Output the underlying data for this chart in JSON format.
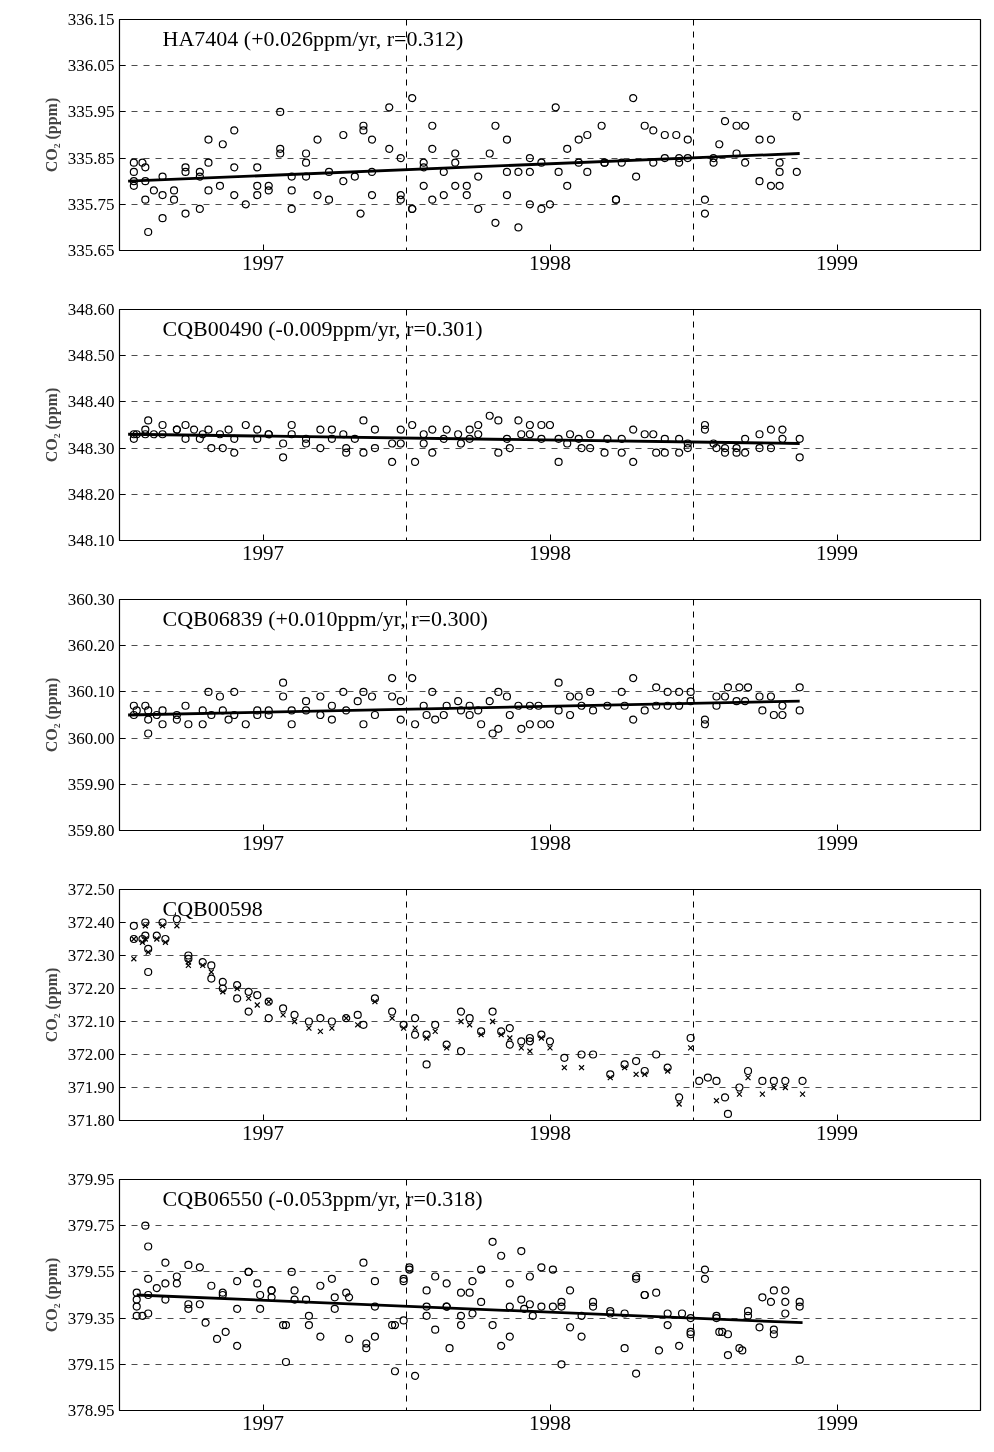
{
  "chart_data": [
    {
      "type": "scatter",
      "title": "HA7404  (+0.026ppm/yr, r=0.312)",
      "ylabel": "CO₂ (ppm)",
      "xlim": [
        1997,
        2000
      ],
      "xticks": [
        {
          "value": 1997.5,
          "label": "1997"
        },
        {
          "value": 1998.5,
          "label": "1998"
        },
        {
          "value": 1999.5,
          "label": "1999"
        }
      ],
      "ylim": [
        335.65,
        336.15
      ],
      "yticks": [
        335.65,
        335.75,
        335.85,
        335.95,
        336.05,
        336.15
      ],
      "grid": "y",
      "marker": "circle",
      "ref_lines": [
        {
          "axis": "x",
          "value": 1998,
          "color": "#000000",
          "line_style": "dashed"
        },
        {
          "axis": "x",
          "value": 1999,
          "color": "#000000",
          "line_style": "dashed"
        }
      ],
      "series": [
        {
          "color": "#000000",
          "x": [
            1997.05,
            1997.05,
            1997.05,
            1997.05,
            1997.08,
            1997.09,
            1997.09,
            1997.09,
            1997.1,
            1997.12,
            1997.15,
            1997.15,
            1997.15,
            1997.19,
            1997.19,
            1997.23,
            1997.23,
            1997.23,
            1997.28,
            1997.28,
            1997.28,
            1997.31,
            1997.31,
            1997.31,
            1997.35,
            1997.36,
            1997.4,
            1997.4,
            1997.4,
            1997.44,
            1997.48,
            1997.48,
            1997.48,
            1997.52,
            1997.52,
            1997.56,
            1997.56,
            1997.56,
            1997.6,
            1997.6,
            1997.6,
            1997.65,
            1997.65,
            1997.65,
            1997.69,
            1997.69,
            1997.73,
            1997.73,
            1997.78,
            1997.78,
            1997.82,
            1997.84,
            1997.85,
            1997.85,
            1997.88,
            1997.88,
            1997.88,
            1997.94,
            1997.94,
            1997.98,
            1997.98,
            1997.98,
            1998.02,
            1998.02,
            1998.02,
            1998.06,
            1998.06,
            1998.06,
            1998.09,
            1998.09,
            1998.09,
            1998.13,
            1998.13,
            1998.17,
            1998.17,
            1998.17,
            1998.21,
            1998.21,
            1998.25,
            1998.25,
            1998.29,
            1998.31,
            1998.31,
            1998.35,
            1998.35,
            1998.35,
            1998.39,
            1998.39,
            1998.43,
            1998.43,
            1998.43,
            1998.47,
            1998.47,
            1998.5,
            1998.52,
            1998.53,
            1998.56,
            1998.56,
            1998.6,
            1998.6,
            1998.63,
            1998.63,
            1998.68,
            1998.69,
            1998.69,
            1998.73,
            1998.73,
            1998.75,
            1998.79,
            1998.8,
            1998.83,
            1998.86,
            1998.86,
            1998.9,
            1998.9,
            1998.94,
            1998.95,
            1998.95,
            1998.98,
            1998.98,
            1999.04,
            1999.04,
            1999.07,
            1999.07,
            1999.09,
            1999.11,
            1999.15,
            1999.15,
            1999.18,
            1999.18,
            1999.23,
            1999.23,
            1999.27,
            1999.27,
            1999.3,
            1999.3,
            1999.3,
            1999.36,
            1999.36
          ],
          "values": [
            335.84,
            335.8,
            335.82,
            335.79,
            335.84,
            335.8,
            335.83,
            335.76,
            335.69,
            335.78,
            335.72,
            335.81,
            335.77,
            335.76,
            335.78,
            335.83,
            335.82,
            335.73,
            335.82,
            335.81,
            335.74,
            335.84,
            335.78,
            335.89,
            335.79,
            335.88,
            335.77,
            335.91,
            335.83,
            335.75,
            335.77,
            335.79,
            335.83,
            335.79,
            335.78,
            335.95,
            335.87,
            335.86,
            335.81,
            335.74,
            335.78,
            335.81,
            335.86,
            335.84,
            335.89,
            335.77,
            335.82,
            335.76,
            335.9,
            335.8,
            335.81,
            335.73,
            335.91,
            335.92,
            335.89,
            335.82,
            335.77,
            335.96,
            335.87,
            335.85,
            335.77,
            335.76,
            335.74,
            335.74,
            335.98,
            335.84,
            335.83,
            335.79,
            335.87,
            335.92,
            335.76,
            335.77,
            335.82,
            335.86,
            335.84,
            335.79,
            335.79,
            335.77,
            335.74,
            335.81,
            335.86,
            335.92,
            335.71,
            335.89,
            335.77,
            335.82,
            335.7,
            335.82,
            335.75,
            335.82,
            335.85,
            335.74,
            335.84,
            335.75,
            335.96,
            335.82,
            335.87,
            335.79,
            335.89,
            335.84,
            335.9,
            335.82,
            335.92,
            335.84,
            335.84,
            335.76,
            335.76,
            335.84,
            335.98,
            335.81,
            335.92,
            335.91,
            335.84,
            335.9,
            335.85,
            335.9,
            335.85,
            335.84,
            335.89,
            335.85,
            335.76,
            335.73,
            335.84,
            335.85,
            335.88,
            335.93,
            335.92,
            335.86,
            335.92,
            335.84,
            335.89,
            335.8,
            335.89,
            335.79,
            335.84,
            335.82,
            335.79,
            335.94,
            335.82
          ]
        },
        {
          "type": "line",
          "color": "#000000",
          "x": [
            1997.03,
            1999.37
          ],
          "values": [
            335.8,
            335.86
          ],
          "marker": "none"
        }
      ]
    },
    {
      "type": "scatter",
      "title": "CQB00490  (-0.009ppm/yr, r=0.301)",
      "ylabel": "CO₂ (ppm)",
      "xlim": [
        1997,
        2000
      ],
      "xticks": [
        {
          "value": 1997.5,
          "label": "1997"
        },
        {
          "value": 1998.5,
          "label": "1998"
        },
        {
          "value": 1999.5,
          "label": "1999"
        }
      ],
      "ylim": [
        348.1,
        348.6
      ],
      "yticks": [
        {
          "value": 348.1,
          "label": "348.10"
        },
        {
          "value": 348.2,
          "label": "348.20"
        },
        {
          "value": 348.3,
          "label": "348.30"
        },
        {
          "value": 348.4,
          "label": "348.40"
        },
        {
          "value": 348.5,
          "label": "348.50"
        },
        {
          "value": 348.6,
          "label": "348.60"
        }
      ],
      "grid": "y",
      "marker": "circle",
      "ref_lines": [
        {
          "axis": "x",
          "value": 1998,
          "color": "#000000",
          "line_style": "dashed"
        },
        {
          "axis": "x",
          "value": 1999,
          "color": "#000000",
          "line_style": "dashed"
        }
      ],
      "series": [
        {
          "color": "#000000",
          "x": [
            1997.05,
            1997.05,
            1997.06,
            1997.09,
            1997.1,
            1997.09,
            1997.12,
            1997.15,
            1997.15,
            1997.2,
            1997.2,
            1997.23,
            1997.23,
            1997.26,
            1997.28,
            1997.29,
            1997.31,
            1997.32,
            1997.35,
            1997.36,
            1997.38,
            1997.4,
            1997.4,
            1997.44,
            1997.48,
            1997.48,
            1997.52,
            1997.52,
            1997.57,
            1997.57,
            1997.6,
            1997.6,
            1997.65,
            1997.65,
            1997.7,
            1997.7,
            1997.74,
            1997.74,
            1997.78,
            1997.79,
            1997.79,
            1997.82,
            1997.85,
            1997.85,
            1997.89,
            1997.89,
            1997.95,
            1997.95,
            1997.98,
            1997.98,
            1998.02,
            1998.03,
            1998.06,
            1998.06,
            1998.09,
            1998.09,
            1998.13,
            1998.14,
            1998.18,
            1998.19,
            1998.22,
            1998.22,
            1998.25,
            1998.25,
            1998.29,
            1998.32,
            1998.32,
            1998.35,
            1998.36,
            1998.39,
            1998.4,
            1998.43,
            1998.43,
            1998.47,
            1998.47,
            1998.5,
            1998.53,
            1998.53,
            1998.56,
            1998.57,
            1998.6,
            1998.61,
            1998.64,
            1998.64,
            1998.7,
            1998.69,
            1998.75,
            1998.75,
            1998.79,
            1998.79,
            1998.83,
            1998.86,
            1998.87,
            1998.9,
            1998.9,
            1998.95,
            1998.95,
            1998.98,
            1998.98,
            1999.04,
            1999.04,
            1999.07,
            1999.08,
            1999.11,
            1999.11,
            1999.15,
            1999.15,
            1999.18,
            1999.18,
            1999.23,
            1999.23,
            1999.27,
            1999.27,
            1999.31,
            1999.31,
            1999.37,
            1999.37
          ],
          "values": [
            348.33,
            348.32,
            348.33,
            348.33,
            348.36,
            348.34,
            348.33,
            348.35,
            348.33,
            348.34,
            348.34,
            348.35,
            348.32,
            348.34,
            348.32,
            348.33,
            348.34,
            348.3,
            348.33,
            348.3,
            348.34,
            348.29,
            348.32,
            348.35,
            348.32,
            348.34,
            348.33,
            348.33,
            348.31,
            348.28,
            348.35,
            348.33,
            348.32,
            348.31,
            348.34,
            348.3,
            348.32,
            348.34,
            348.33,
            348.3,
            348.29,
            348.32,
            348.36,
            348.29,
            348.34,
            348.3,
            348.27,
            348.31,
            348.34,
            348.31,
            348.35,
            348.27,
            348.33,
            348.31,
            348.34,
            348.29,
            348.32,
            348.34,
            348.33,
            348.31,
            348.34,
            348.32,
            348.35,
            348.33,
            348.37,
            348.36,
            348.29,
            348.32,
            348.3,
            348.36,
            348.33,
            348.33,
            348.35,
            348.35,
            348.32,
            348.35,
            348.27,
            348.32,
            348.31,
            348.33,
            348.32,
            348.3,
            348.33,
            348.3,
            348.32,
            348.29,
            348.32,
            348.29,
            348.34,
            348.27,
            348.33,
            348.33,
            348.29,
            348.32,
            348.29,
            348.32,
            348.29,
            348.31,
            348.3,
            348.35,
            348.34,
            348.31,
            348.3,
            348.3,
            348.29,
            348.3,
            348.29,
            348.32,
            348.29,
            348.33,
            348.3,
            348.34,
            348.3,
            348.34,
            348.32,
            348.32,
            348.28
          ]
        },
        {
          "type": "line",
          "color": "#000000",
          "x": [
            1997.03,
            1999.37
          ],
          "values": [
            348.33,
            348.31
          ],
          "marker": "none"
        }
      ]
    },
    {
      "type": "scatter",
      "title": "CQB06839  (+0.010ppm/yr, r=0.300)",
      "ylabel": "CO₂ (ppm)",
      "xlim": [
        1997,
        2000
      ],
      "xticks": [
        {
          "value": 1997.5,
          "label": "1997"
        },
        {
          "value": 1998.5,
          "label": "1998"
        },
        {
          "value": 1999.5,
          "label": "1999"
        }
      ],
      "ylim": [
        359.8,
        360.3
      ],
      "yticks": [
        {
          "value": 359.8,
          "label": "359.80"
        },
        {
          "value": 359.9,
          "label": "359.90"
        },
        {
          "value": 360.0,
          "label": "360.00"
        },
        {
          "value": 360.1,
          "label": "360.10"
        },
        {
          "value": 360.2,
          "label": "360.20"
        },
        {
          "value": 360.3,
          "label": "360.30"
        }
      ],
      "grid": "y",
      "marker": "circle",
      "ref_lines": [
        {
          "axis": "x",
          "value": 1998,
          "color": "#000000",
          "line_style": "dashed"
        },
        {
          "axis": "x",
          "value": 1999,
          "color": "#000000",
          "line_style": "dashed"
        }
      ],
      "series": [
        {
          "color": "#000000",
          "x": [
            1997.05,
            1997.05,
            1997.06,
            1997.09,
            1997.1,
            1997.1,
            1997.1,
            1997.13,
            1997.15,
            1997.15,
            1997.2,
            1997.2,
            1997.23,
            1997.24,
            1997.29,
            1997.29,
            1997.31,
            1997.32,
            1997.35,
            1997.36,
            1997.38,
            1997.4,
            1997.4,
            1997.44,
            1997.48,
            1997.48,
            1997.52,
            1997.52,
            1997.57,
            1997.57,
            1997.6,
            1997.6,
            1997.65,
            1997.65,
            1997.7,
            1997.7,
            1997.74,
            1997.74,
            1997.78,
            1997.79,
            1997.83,
            1997.85,
            1997.85,
            1997.88,
            1997.89,
            1997.95,
            1997.95,
            1997.98,
            1997.98,
            1998.02,
            1998.03,
            1998.06,
            1998.07,
            1998.09,
            1998.1,
            1998.13,
            1998.14,
            1998.18,
            1998.19,
            1998.22,
            1998.22,
            1998.25,
            1998.26,
            1998.29,
            1998.3,
            1998.32,
            1998.32,
            1998.35,
            1998.36,
            1998.39,
            1998.4,
            1998.43,
            1998.43,
            1998.46,
            1998.47,
            1998.5,
            1998.53,
            1998.53,
            1998.57,
            1998.57,
            1998.6,
            1998.61,
            1998.64,
            1998.65,
            1998.7,
            1998.75,
            1998.76,
            1998.79,
            1998.79,
            1998.83,
            1998.87,
            1998.87,
            1998.91,
            1998.91,
            1998.95,
            1998.95,
            1998.99,
            1998.99,
            1999.04,
            1999.04,
            1999.08,
            1999.08,
            1999.11,
            1999.12,
            1999.15,
            1999.16,
            1999.18,
            1999.19,
            1999.23,
            1999.24,
            1999.27,
            1999.28,
            1999.31,
            1999.31,
            1999.37,
            1999.37
          ],
          "values": [
            360.07,
            360.05,
            360.06,
            360.07,
            360.04,
            360.01,
            360.06,
            360.05,
            360.06,
            360.03,
            360.05,
            360.04,
            360.07,
            360.03,
            360.06,
            360.03,
            360.1,
            360.05,
            360.09,
            360.06,
            360.04,
            360.1,
            360.05,
            360.03,
            360.06,
            360.05,
            360.06,
            360.05,
            360.12,
            360.09,
            360.06,
            360.03,
            360.08,
            360.06,
            360.09,
            360.05,
            360.07,
            360.04,
            360.1,
            360.06,
            360.08,
            360.03,
            360.1,
            360.09,
            360.05,
            360.13,
            360.09,
            360.08,
            360.04,
            360.13,
            360.03,
            360.07,
            360.05,
            360.1,
            360.04,
            360.05,
            360.07,
            360.08,
            360.06,
            360.07,
            360.05,
            360.06,
            360.03,
            360.08,
            360.01,
            360.1,
            360.02,
            360.09,
            360.05,
            360.07,
            360.02,
            360.07,
            360.03,
            360.07,
            360.03,
            360.03,
            360.12,
            360.06,
            360.09,
            360.05,
            360.09,
            360.07,
            360.1,
            360.06,
            360.07,
            360.1,
            360.07,
            360.13,
            360.04,
            360.06,
            360.07,
            360.11,
            360.1,
            360.07,
            360.1,
            360.07,
            360.1,
            360.08,
            360.04,
            360.03,
            360.07,
            360.09,
            360.09,
            360.11,
            360.08,
            360.11,
            360.08,
            360.11,
            360.09,
            360.06,
            360.09,
            360.05,
            360.07,
            360.05,
            360.11,
            360.06
          ]
        },
        {
          "type": "line",
          "color": "#000000",
          "x": [
            1997.03,
            1999.37
          ],
          "values": [
            360.05,
            360.08
          ],
          "marker": "none"
        }
      ]
    },
    {
      "type": "scatter",
      "title": "CQB00598",
      "ylabel": "CO₂ (ppm)",
      "xlim": [
        1997,
        2000
      ],
      "xticks": [
        {
          "value": 1997.5,
          "label": "1997"
        },
        {
          "value": 1998.5,
          "label": "1998"
        },
        {
          "value": 1999.5,
          "label": "1999"
        }
      ],
      "ylim": [
        371.8,
        372.5
      ],
      "yticks": [
        {
          "value": 371.8,
          "label": "371.80"
        },
        {
          "value": 371.9,
          "label": "371.90"
        },
        {
          "value": 372.0,
          "label": "372.00"
        },
        {
          "value": 372.1,
          "label": "372.10"
        },
        {
          "value": 372.2,
          "label": "372.20"
        },
        {
          "value": 372.3,
          "label": "372.30"
        },
        {
          "value": 372.4,
          "label": "372.40"
        },
        {
          "value": 372.5,
          "label": "372.50"
        }
      ],
      "grid": "y",
      "ref_lines": [
        {
          "axis": "x",
          "value": 1998,
          "color": "#000000",
          "line_style": "dashed"
        },
        {
          "axis": "x",
          "value": 1999,
          "color": "#000000",
          "line_style": "dashed"
        }
      ],
      "series": [
        {
          "marker": "circle",
          "color": "#000000",
          "x": [
            1997.05,
            1997.05,
            1997.08,
            1997.09,
            1997.09,
            1997.1,
            1997.1,
            1997.13,
            1997.15,
            1997.16,
            1997.2,
            1997.24,
            1997.24,
            1997.29,
            1997.32,
            1997.32,
            1997.36,
            1997.36,
            1997.41,
            1997.41,
            1997.45,
            1997.45,
            1997.48,
            1997.52,
            1997.52,
            1997.57,
            1997.61,
            1997.66,
            1997.7,
            1997.74,
            1997.79,
            1997.83,
            1997.85,
            1997.89,
            1997.95,
            1997.99,
            1998.03,
            1998.03,
            1998.07,
            1998.07,
            1998.1,
            1998.14,
            1998.19,
            1998.19,
            1998.22,
            1998.26,
            1998.3,
            1998.33,
            1998.36,
            1998.36,
            1998.4,
            1998.43,
            1998.43,
            1998.47,
            1998.5,
            1998.55,
            1998.61,
            1998.65,
            1998.71,
            1998.76,
            1998.8,
            1998.83,
            1998.87,
            1998.91,
            1998.95,
            1998.99,
            1999.02,
            1999.05,
            1999.08,
            1999.11,
            1999.12,
            1999.16,
            1999.19,
            1999.24,
            1999.28,
            1999.32,
            1999.38
          ],
          "values": [
            372.39,
            372.35,
            372.35,
            372.4,
            372.36,
            372.32,
            372.25,
            372.36,
            372.4,
            372.35,
            372.41,
            372.3,
            372.29,
            372.28,
            372.27,
            372.23,
            372.22,
            372.2,
            372.21,
            372.17,
            372.19,
            372.13,
            372.18,
            372.16,
            372.11,
            372.14,
            372.12,
            372.1,
            372.11,
            372.1,
            372.11,
            372.12,
            372.09,
            372.17,
            372.13,
            372.09,
            372.11,
            372.06,
            372.06,
            371.97,
            372.09,
            372.03,
            372.13,
            372.01,
            372.11,
            372.07,
            372.13,
            372.07,
            372.08,
            372.03,
            372.04,
            372.04,
            372.05,
            372.06,
            372.04,
            371.99,
            372.0,
            372.0,
            371.94,
            371.97,
            371.98,
            371.95,
            372.0,
            371.96,
            371.87,
            372.05,
            371.92,
            371.93,
            371.92,
            371.87,
            371.82,
            371.9,
            371.95,
            371.92,
            371.92,
            371.92,
            371.92
          ]
        },
        {
          "marker": "cross",
          "color": "#000000",
          "x": [
            1997.05,
            1997.05,
            1997.08,
            1997.09,
            1997.09,
            1997.1,
            1997.13,
            1997.15,
            1997.16,
            1997.2,
            1997.24,
            1997.24,
            1997.29,
            1997.32,
            1997.36,
            1997.41,
            1997.45,
            1997.48,
            1997.52,
            1997.57,
            1997.61,
            1997.66,
            1997.7,
            1997.74,
            1997.79,
            1997.83,
            1997.89,
            1997.95,
            1997.99,
            1998.03,
            1998.07,
            1998.1,
            1998.14,
            1998.19,
            1998.22,
            1998.26,
            1998.3,
            1998.33,
            1998.36,
            1998.4,
            1998.43,
            1998.47,
            1998.5,
            1998.55,
            1998.61,
            1998.71,
            1998.76,
            1998.8,
            1998.83,
            1998.91,
            1998.95,
            1998.99,
            1999.08,
            1999.16,
            1999.19,
            1999.24,
            1999.28,
            1999.32,
            1999.38
          ],
          "values": [
            372.35,
            372.29,
            372.34,
            372.39,
            372.35,
            372.31,
            372.35,
            372.39,
            372.34,
            372.39,
            372.27,
            372.28,
            372.27,
            372.25,
            372.19,
            372.2,
            372.17,
            372.15,
            372.16,
            372.12,
            372.1,
            372.08,
            372.07,
            372.08,
            372.11,
            372.09,
            372.16,
            372.11,
            372.08,
            372.08,
            372.05,
            372.07,
            372.02,
            372.1,
            372.09,
            372.06,
            372.1,
            372.06,
            372.05,
            372.02,
            372.01,
            372.05,
            372.02,
            371.96,
            371.96,
            371.93,
            371.96,
            371.94,
            371.94,
            371.95,
            371.85,
            372.02,
            371.86,
            371.88,
            371.93,
            371.88,
            371.9,
            371.9,
            371.88
          ]
        }
      ]
    },
    {
      "type": "scatter",
      "title": "CQB06550  (-0.053ppm/yr, r=0.318)",
      "ylabel": "CO₂ (ppm)",
      "xlim": [
        1997,
        2000
      ],
      "xticks": [
        {
          "value": 1997.5,
          "label": "1997"
        },
        {
          "value": 1998.5,
          "label": "1998"
        },
        {
          "value": 1999.5,
          "label": "1999"
        }
      ],
      "ylim": [
        378.95,
        379.95
      ],
      "yticks": [
        378.95,
        379.15,
        379.35,
        379.55,
        379.75,
        379.95
      ],
      "grid": "y",
      "marker": "circle",
      "ref_lines": [
        {
          "axis": "x",
          "value": 1998,
          "color": "#000000",
          "line_style": "dashed"
        },
        {
          "axis": "x",
          "value": 1999,
          "color": "#000000",
          "line_style": "dashed"
        }
      ],
      "series": [
        {
          "color": "#000000",
          "x": [
            1997.06,
            1997.06,
            1997.06,
            1997.06,
            1997.08,
            1997.09,
            1997.1,
            1997.1,
            1997.1,
            1997.1,
            1997.13,
            1997.16,
            1997.16,
            1997.16,
            1997.2,
            1997.2,
            1997.24,
            1997.24,
            1997.24,
            1997.28,
            1997.28,
            1997.3,
            1997.32,
            1997.34,
            1997.36,
            1997.36,
            1997.37,
            1997.41,
            1997.41,
            1997.41,
            1997.45,
            1997.45,
            1997.48,
            1997.49,
            1997.49,
            1997.53,
            1997.53,
            1997.53,
            1997.57,
            1997.58,
            1997.58,
            1997.6,
            1997.61,
            1997.61,
            1997.65,
            1997.66,
            1997.66,
            1997.7,
            1997.7,
            1997.74,
            1997.75,
            1997.75,
            1997.79,
            1997.8,
            1997.8,
            1997.85,
            1997.86,
            1997.86,
            1997.89,
            1997.89,
            1997.89,
            1997.95,
            1997.96,
            1997.96,
            1997.99,
            1997.99,
            1997.99,
            1998.01,
            1998.01,
            1998.03,
            1998.07,
            1998.07,
            1998.07,
            1998.1,
            1998.1,
            1998.14,
            1998.14,
            1998.14,
            1998.15,
            1998.19,
            1998.19,
            1998.19,
            1998.22,
            1998.23,
            1998.23,
            1998.26,
            1998.26,
            1998.3,
            1998.3,
            1998.33,
            1998.33,
            1998.36,
            1998.36,
            1998.36,
            1998.4,
            1998.4,
            1998.41,
            1998.43,
            1998.43,
            1998.44,
            1998.47,
            1998.47,
            1998.51,
            1998.51,
            1998.54,
            1998.54,
            1998.54,
            1998.57,
            1998.57,
            1998.61,
            1998.61,
            1998.65,
            1998.65,
            1998.71,
            1998.71,
            1998.76,
            1998.76,
            1998.8,
            1998.8,
            1998.8,
            1998.83,
            1998.83,
            1998.87,
            1998.88,
            1998.91,
            1998.91,
            1998.95,
            1998.96,
            1998.99,
            1998.99,
            1998.99,
            1999.04,
            1999.04,
            1999.08,
            1999.08,
            1999.09,
            1999.1,
            1999.12,
            1999.12,
            1999.16,
            1999.17,
            1999.19,
            1999.19,
            1999.23,
            1999.24,
            1999.27,
            1999.28,
            1999.28,
            1999.28,
            1999.32,
            1999.32,
            1999.32,
            1999.37,
            1999.37,
            1999.37
          ],
          "values": [
            379.46,
            379.43,
            379.4,
            379.36,
            379.36,
            379.75,
            379.66,
            379.37,
            379.52,
            379.45,
            379.48,
            379.59,
            379.5,
            379.43,
            379.53,
            379.5,
            379.58,
            379.41,
            379.39,
            379.57,
            379.41,
            379.33,
            379.49,
            379.26,
            379.46,
            379.45,
            379.29,
            379.51,
            379.39,
            379.23,
            379.55,
            379.55,
            379.5,
            379.45,
            379.39,
            379.47,
            379.44,
            379.47,
            379.32,
            379.32,
            379.16,
            379.55,
            379.47,
            379.43,
            379.43,
            379.36,
            379.32,
            379.49,
            379.27,
            379.52,
            379.44,
            379.39,
            379.46,
            379.44,
            379.26,
            379.59,
            379.24,
            379.22,
            379.51,
            379.4,
            379.27,
            379.32,
            379.32,
            379.12,
            379.51,
            379.52,
            379.34,
            379.56,
            379.57,
            379.1,
            379.47,
            379.4,
            379.36,
            379.53,
            379.3,
            379.4,
            379.4,
            379.5,
            379.22,
            379.46,
            379.32,
            379.36,
            379.46,
            379.51,
            379.37,
            379.56,
            379.42,
            379.68,
            379.32,
            379.62,
            379.23,
            379.5,
            379.4,
            379.27,
            379.64,
            379.43,
            379.39,
            379.53,
            379.41,
            379.36,
            379.4,
            379.57,
            379.56,
            379.4,
            379.15,
            379.42,
            379.4,
            379.47,
            379.31,
            379.36,
            379.27,
            379.42,
            379.4,
            379.38,
            379.37,
            379.22,
            379.37,
            379.52,
            379.53,
            379.11,
            379.45,
            379.45,
            379.46,
            379.21,
            379.37,
            379.32,
            379.23,
            379.37,
            379.29,
            379.28,
            379.35,
            379.56,
            379.52,
            379.36,
            379.35,
            379.29,
            379.29,
            379.19,
            379.28,
            379.22,
            379.21,
            379.38,
            379.36,
            379.31,
            379.44,
            379.42,
            379.47,
            379.28,
            379.3,
            379.47,
            379.42,
            379.37,
            379.42,
            379.4,
            379.17
          ]
        },
        {
          "type": "line",
          "color": "#000000",
          "x": [
            1997.06,
            1999.38
          ],
          "values": [
            379.45,
            379.33
          ],
          "marker": "none"
        }
      ]
    }
  ]
}
